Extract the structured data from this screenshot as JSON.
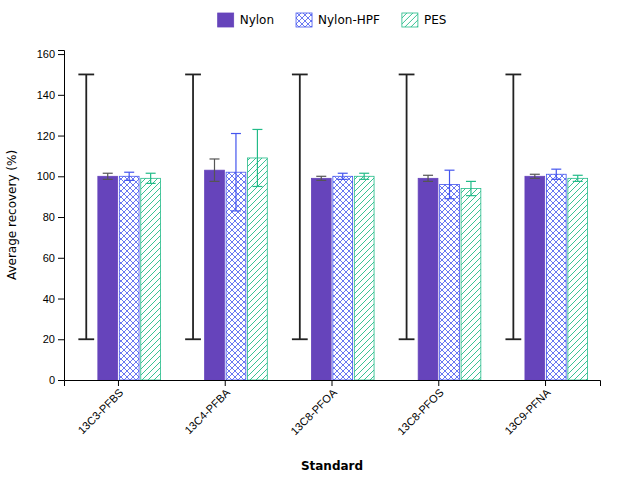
{
  "chart_data": {
    "type": "bar",
    "categories": [
      "13C3-PFBS",
      "13C4-PFBA",
      "13C8-PFOA",
      "13C8-PFOS",
      "13C9-PFNA"
    ],
    "series": [
      {
        "name": "Nylon",
        "color": "#6644bb",
        "values": [
          100,
          103,
          99,
          99,
          100
        ],
        "errors": [
          1.5,
          5.5,
          1.0,
          1.5,
          1.0
        ]
      },
      {
        "name": "Nylon-HPF",
        "color": "#4455ee",
        "values": [
          100,
          102,
          100,
          96,
          101
        ],
        "errors": [
          2.0,
          19,
          1.5,
          7.0,
          2.5
        ]
      },
      {
        "name": "PES",
        "color": "#22bb88",
        "values": [
          99,
          109,
          100,
          94,
          99
        ],
        "errors": [
          2.5,
          14,
          1.5,
          3.5,
          1.5
        ]
      }
    ],
    "qc_range": [
      20,
      150
    ],
    "xlabel": "Standard",
    "ylabel": "Average recovery (%)",
    "ylim": [
      0,
      162
    ],
    "yticks": [
      0,
      20,
      40,
      60,
      80,
      100,
      120,
      140,
      160
    ],
    "grid": false,
    "legend": "top"
  }
}
